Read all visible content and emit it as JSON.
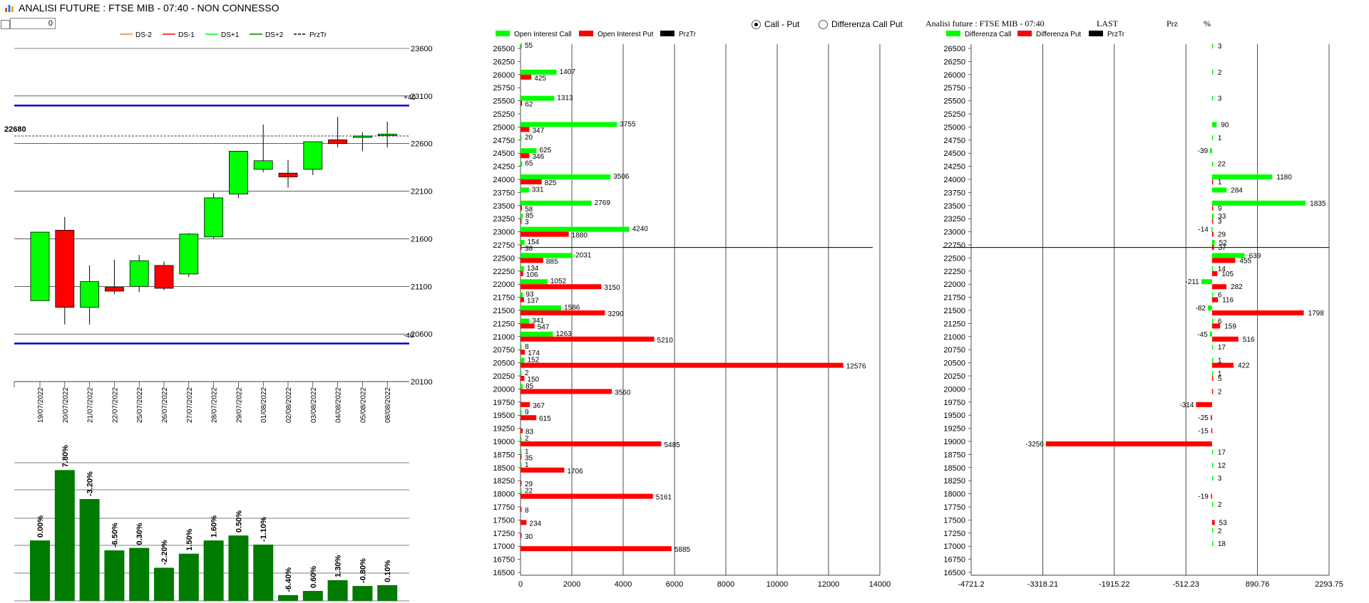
{
  "window": {
    "title": "ANALISI FUTURE : FTSE MIB - 07:40 - NON CONNESSO"
  },
  "controls": {
    "spin_value": "0"
  },
  "radio": {
    "call_put": "Call - Put",
    "diff_call_put": "Differenza Call Put",
    "selected": "call_put"
  },
  "right_header": {
    "title": "Analisi future : FTSE MIB - 07:40",
    "last": "LAST",
    "prz": "Prz",
    "pct": "%"
  },
  "colors": {
    "green": "#00ff00",
    "red": "#ff0000",
    "dark_green": "#007a00",
    "blue": "#0000cc",
    "black": "#000000"
  },
  "chart_data": [
    {
      "type": "candlestick",
      "legend": [
        {
          "name": "DS-2",
          "color": "#f08050",
          "dash": false
        },
        {
          "name": "DS-1",
          "color": "#ff0000",
          "dash": false
        },
        {
          "name": "DS+1",
          "color": "#00ff00",
          "dash": false
        },
        {
          "name": "DS+2",
          "color": "#008000",
          "dash": false
        },
        {
          "name": "PrzTr",
          "color": "#000000",
          "dash": true
        }
      ],
      "ylim": [
        20100,
        23600
      ],
      "yticks": [
        20100,
        20600,
        21100,
        21600,
        22100,
        22600,
        23100,
        23600
      ],
      "current_label": "22680",
      "band_labels": [
        "+40",
        "-40"
      ],
      "upper_band": 23000,
      "lower_band": 20500,
      "candles": [
        {
          "date": "19/07/2022",
          "open": 20950,
          "close": 21670,
          "high": 21670,
          "low": 20950
        },
        {
          "date": "20/07/2022",
          "open": 21690,
          "close": 20880,
          "high": 21830,
          "low": 20700
        },
        {
          "date": "21/07/2022",
          "open": 20880,
          "close": 21150,
          "high": 21320,
          "low": 20700
        },
        {
          "date": "22/07/2022",
          "open": 21090,
          "close": 21050,
          "high": 21380,
          "low": 21020
        },
        {
          "date": "25/07/2022",
          "open": 21100,
          "close": 21370,
          "high": 21430,
          "low": 21040
        },
        {
          "date": "26/07/2022",
          "open": 21320,
          "close": 21080,
          "high": 21360,
          "low": 21060
        },
        {
          "date": "27/07/2022",
          "open": 21230,
          "close": 21650,
          "high": 21660,
          "low": 21200
        },
        {
          "date": "28/07/2022",
          "open": 21620,
          "close": 22030,
          "high": 22080,
          "low": 21600
        },
        {
          "date": "29/07/2022",
          "open": 22070,
          "close": 22520,
          "high": 22520,
          "low": 22030
        },
        {
          "date": "01/08/2022",
          "open": 22330,
          "close": 22420,
          "high": 22800,
          "low": 22300
        },
        {
          "date": "02/08/2022",
          "open": 22290,
          "close": 22250,
          "high": 22430,
          "low": 22140
        },
        {
          "date": "03/08/2022",
          "open": 22330,
          "close": 22620,
          "high": 22620,
          "low": 22270
        },
        {
          "date": "04/08/2022",
          "open": 22640,
          "close": 22600,
          "high": 22880,
          "low": 22560
        },
        {
          "date": "05/08/2022",
          "open": 22670,
          "close": 22680,
          "high": 22720,
          "low": 22520
        },
        {
          "date": "08/08/2022",
          "open": 22690,
          "close": 22700,
          "high": 22830,
          "low": 22560
        }
      ]
    },
    {
      "type": "bar",
      "categories": [
        "19/07/2022",
        "20/07/2022",
        "21/07/2022",
        "22/07/2022",
        "25/07/2022",
        "26/07/2022",
        "27/07/2022",
        "28/07/2022",
        "29/07/2022",
        "01/08/2022",
        "02/08/2022",
        "03/08/2022",
        "04/08/2022",
        "05/08/2022",
        "08/08/2022"
      ],
      "labels": [
        "0.00%",
        "7.80%",
        "-3.20%",
        "-6.50%",
        "0.30%",
        "-2.20%",
        "1.50%",
        "1.60%",
        "0.50%",
        "-1.10%",
        "-6.40%",
        "0.60%",
        "1.30%",
        "-0.80%",
        "0.10%"
      ],
      "values": [
        7.3,
        15.8,
        12.3,
        6.1,
        6.4,
        4.0,
        5.7,
        7.3,
        7.9,
        6.8,
        0.7,
        1.2,
        2.5,
        1.8,
        1.9
      ]
    },
    {
      "type": "bar",
      "orientation": "horizontal",
      "legend": [
        {
          "name": "Open Interest Call",
          "color": "#00ff00"
        },
        {
          "name": "Open Interest Put",
          "color": "#ff0000"
        },
        {
          "name": "PrzTr",
          "color": "#000000"
        }
      ],
      "categories": [
        26500,
        26250,
        26000,
        25750,
        25500,
        25250,
        25000,
        24750,
        24500,
        24250,
        24000,
        23750,
        23500,
        23250,
        23000,
        22750,
        22500,
        22250,
        22000,
        21750,
        21500,
        21250,
        21000,
        20750,
        20500,
        20250,
        20000,
        19750,
        19500,
        19250,
        19000,
        18750,
        18500,
        18250,
        18000,
        17750,
        17500,
        17250,
        17000,
        16750,
        16500
      ],
      "series": [
        {
          "name": "Open Interest Call",
          "values": [
            55,
            null,
            1407,
            null,
            1313,
            null,
            3755,
            20,
            625,
            65,
            3506,
            331,
            2769,
            85,
            4240,
            154,
            2031,
            134,
            1052,
            93,
            1586,
            341,
            1263,
            8,
            152,
            2,
            85,
            null,
            9,
            null,
            2,
            1,
            1,
            null,
            22,
            null,
            null,
            null,
            null,
            null,
            null
          ]
        },
        {
          "name": "Open Interest Put",
          "values": [
            null,
            null,
            425,
            null,
            62,
            null,
            347,
            null,
            346,
            null,
            825,
            null,
            58,
            3,
            1880,
            38,
            885,
            106,
            3150,
            137,
            3290,
            547,
            5210,
            174,
            12576,
            150,
            3560,
            367,
            615,
            83,
            5485,
            35,
            1706,
            29,
            5161,
            8,
            234,
            30,
            5885,
            null,
            null
          ]
        }
      ],
      "xlim": [
        0,
        14000
      ],
      "xticks": [
        0,
        2000,
        4000,
        6000,
        8000,
        10000,
        12000,
        14000
      ],
      "current_level": 22700
    },
    {
      "type": "bar",
      "orientation": "horizontal",
      "legend": [
        {
          "name": "Differenza Call",
          "color": "#00ff00"
        },
        {
          "name": "Differenza Put",
          "color": "#ff0000"
        },
        {
          "name": "PrzTr",
          "color": "#000000"
        }
      ],
      "categories": [
        26500,
        26250,
        26000,
        25750,
        25500,
        25250,
        25000,
        24750,
        24500,
        24250,
        24000,
        23750,
        23500,
        23250,
        23000,
        22750,
        22500,
        22250,
        22000,
        21750,
        21500,
        21250,
        21000,
        20750,
        20500,
        20250,
        20000,
        19750,
        19500,
        19250,
        19000,
        18750,
        18500,
        18250,
        18000,
        17750,
        17500,
        17250,
        17000,
        16750,
        16500
      ],
      "series": [
        {
          "name": "Differenza Call",
          "values": [
            3,
            null,
            2,
            null,
            3,
            null,
            90,
            1,
            -39,
            22,
            1180,
            284,
            1835,
            33,
            -14,
            52,
            639,
            14,
            -211,
            6,
            -82,
            6,
            -45,
            17,
            1,
            1,
            null,
            null,
            null,
            null,
            null,
            17,
            12,
            3,
            null,
            2,
            null,
            2,
            18,
            null,
            null
          ]
        },
        {
          "name": "Differenza Put",
          "values": [
            null,
            null,
            null,
            null,
            null,
            null,
            null,
            null,
            null,
            null,
            1,
            null,
            9,
            3,
            29,
            37,
            455,
            105,
            282,
            116,
            1798,
            159,
            516,
            null,
            422,
            5,
            2,
            -314,
            -25,
            -15,
            -3256,
            null,
            null,
            null,
            -19,
            null,
            53,
            null,
            null,
            null,
            null
          ]
        }
      ],
      "xlim": [
        -4721.2,
        2293.75
      ],
      "xticks": [
        "-4721.2",
        "-3318.21",
        "-1915.22",
        "-512.23",
        "890.76",
        "2293.75"
      ],
      "current_level": 22700
    }
  ]
}
